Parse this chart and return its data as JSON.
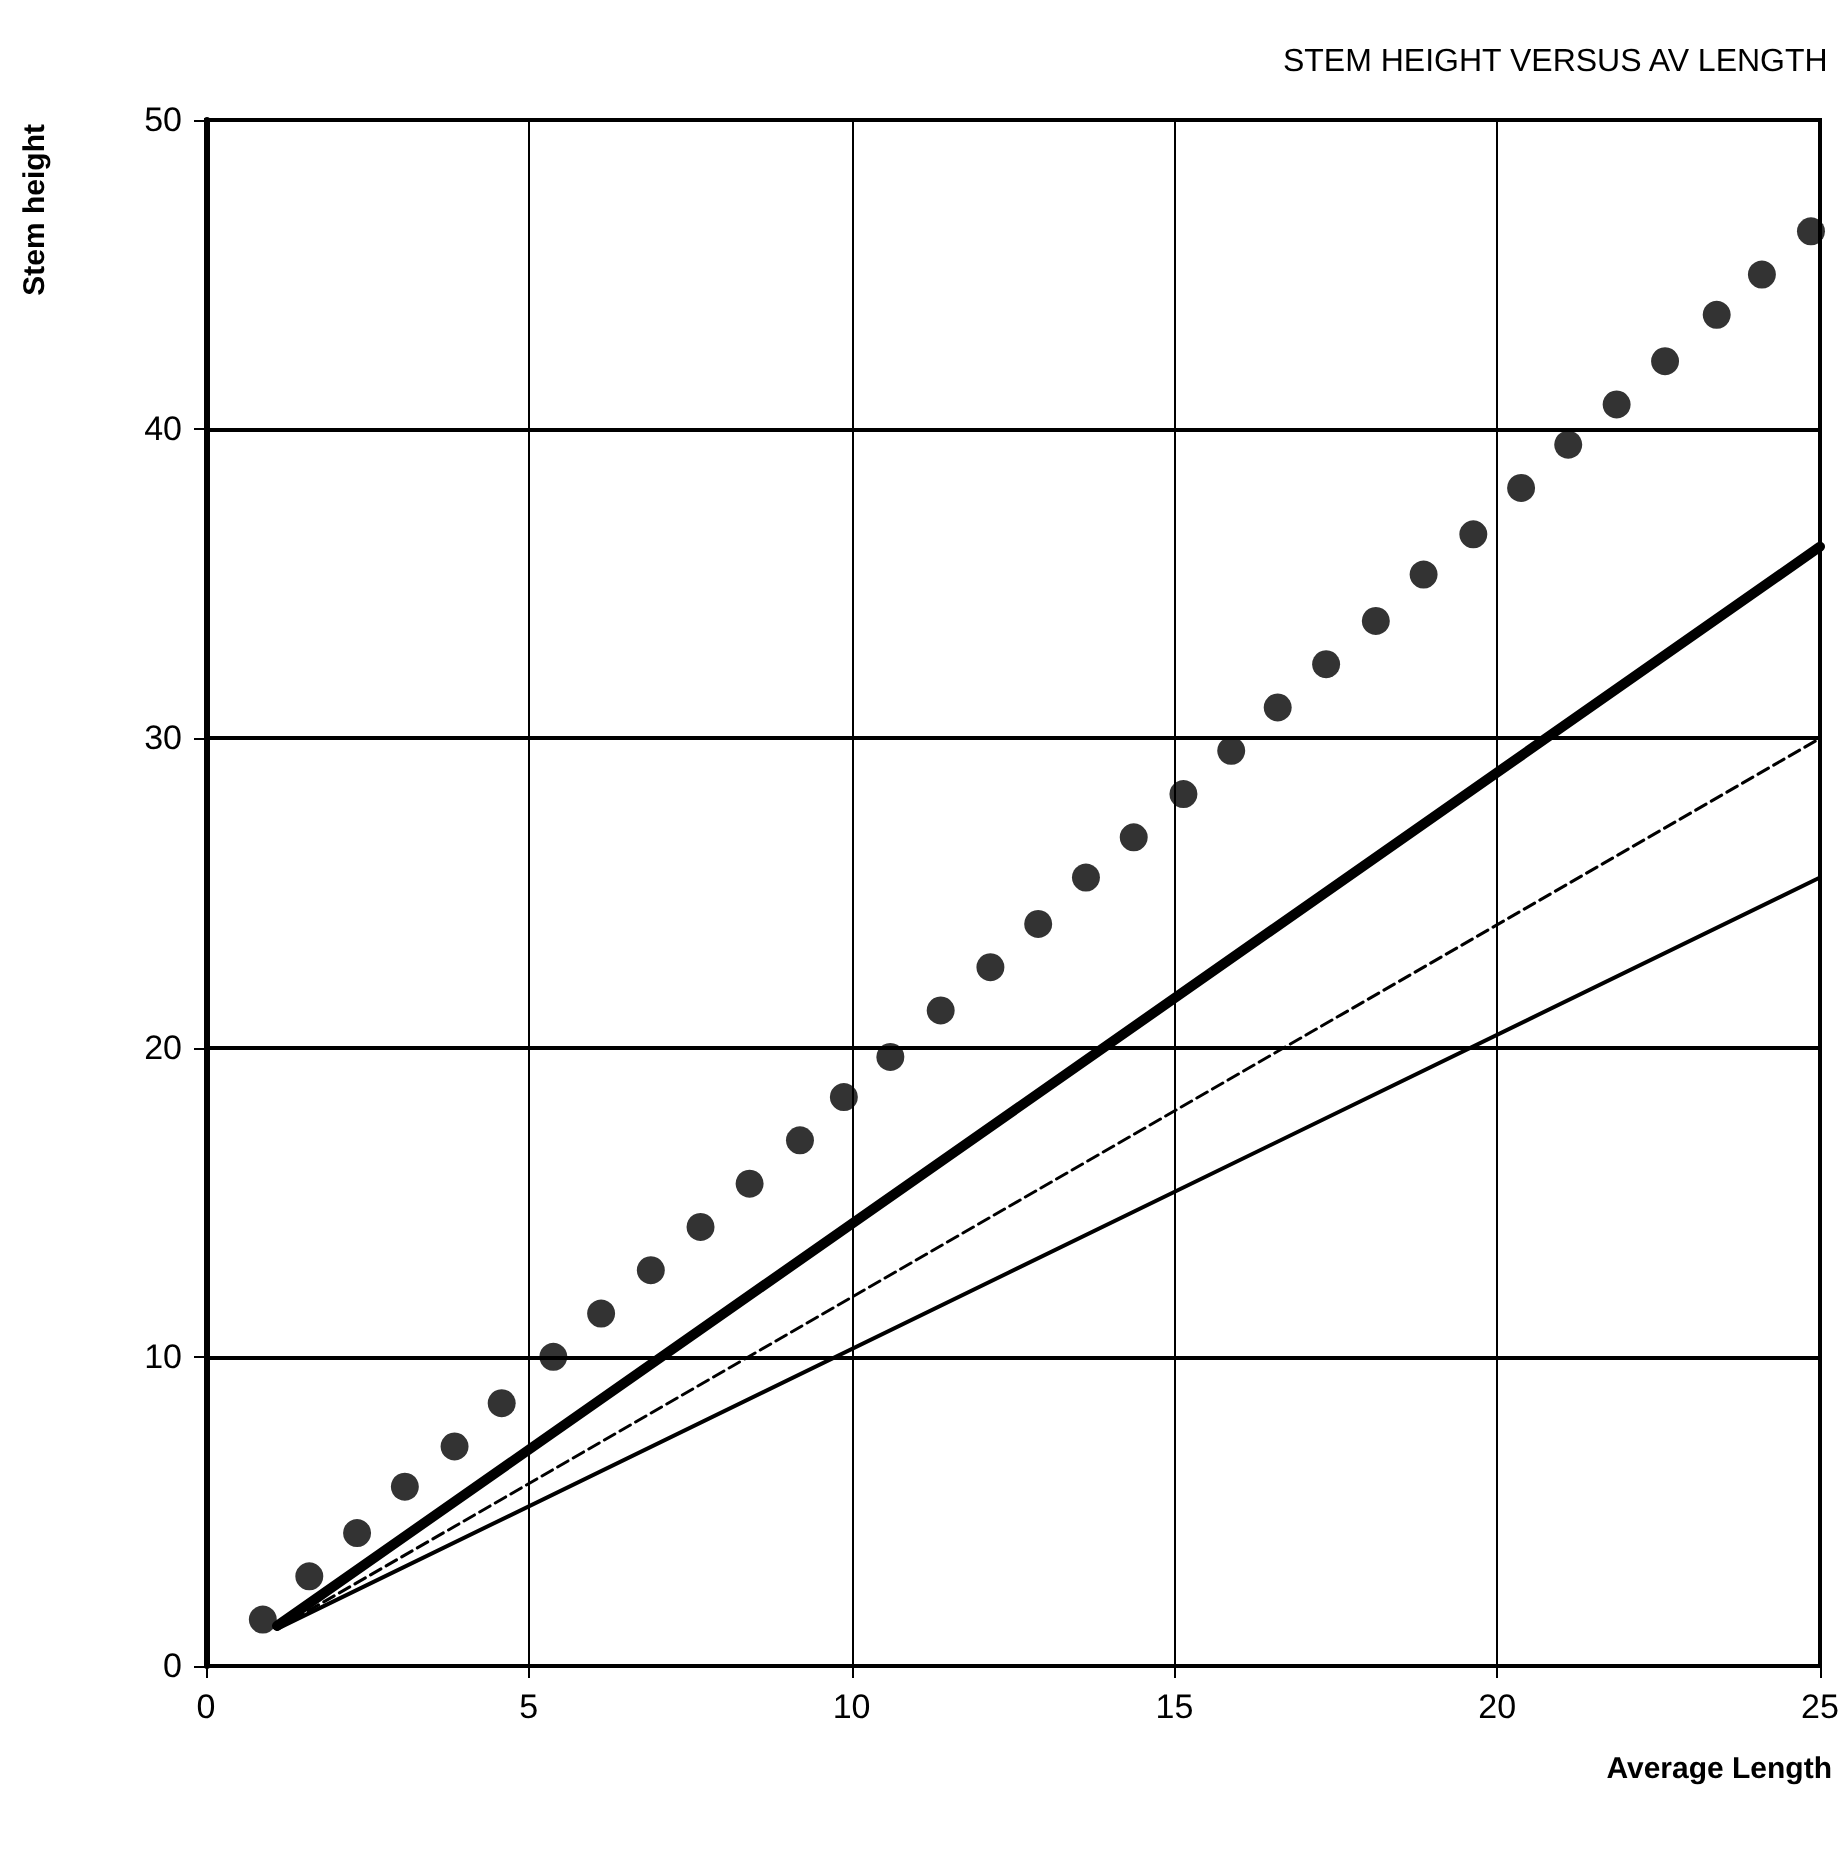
{
  "chart_data": {
    "type": "scatter",
    "title": "STEM HEIGHT VERSUS AV LENGTH",
    "xlabel": "Average Length",
    "ylabel": "Stem height",
    "xlim": [
      0,
      25
    ],
    "ylim": [
      0,
      50
    ],
    "xticks": [
      0,
      5,
      10,
      15,
      20,
      25
    ],
    "yticks": [
      0,
      10,
      20,
      30,
      40,
      50
    ],
    "grid": true,
    "series": [
      {
        "color": "#000000",
        "marker": "circle",
        "x": [
          0.88,
          1.6,
          2.34,
          3.08,
          3.85,
          4.58,
          5.38,
          6.12,
          6.89,
          7.66,
          8.42,
          9.2,
          9.88,
          10.6,
          11.38,
          12.15,
          12.89,
          13.63,
          14.37,
          15.14,
          15.88,
          16.6,
          17.35,
          18.12,
          18.86,
          19.63,
          20.37,
          21.1,
          21.85,
          22.6,
          23.4,
          24.1,
          24.86
        ],
        "values": [
          1.5,
          2.9,
          4.3,
          5.8,
          7.1,
          8.5,
          10.0,
          11.4,
          12.8,
          14.2,
          15.6,
          17.0,
          18.4,
          19.7,
          21.2,
          22.6,
          24.0,
          25.5,
          26.8,
          28.2,
          29.6,
          31.0,
          32.4,
          33.8,
          35.3,
          36.6,
          38.1,
          39.5,
          40.8,
          42.2,
          43.7,
          45.0,
          46.4
        ]
      },
      {
        "type": "line",
        "color": "#000000",
        "line_style": "solid",
        "marker": "none",
        "x": [
          1.1,
          25
        ],
        "values": [
          1.3,
          36.2
        ]
      },
      {
        "type": "line",
        "color": "#000000",
        "line_style": "dashed",
        "marker": "none",
        "x": [
          1.1,
          25
        ],
        "values": [
          1.2,
          30
        ]
      },
      {
        "type": "line",
        "color": "#000000",
        "line_style": "solid",
        "marker": "none",
        "x": [
          1.1,
          25
        ],
        "values": [
          1.2,
          25.5
        ]
      }
    ]
  }
}
